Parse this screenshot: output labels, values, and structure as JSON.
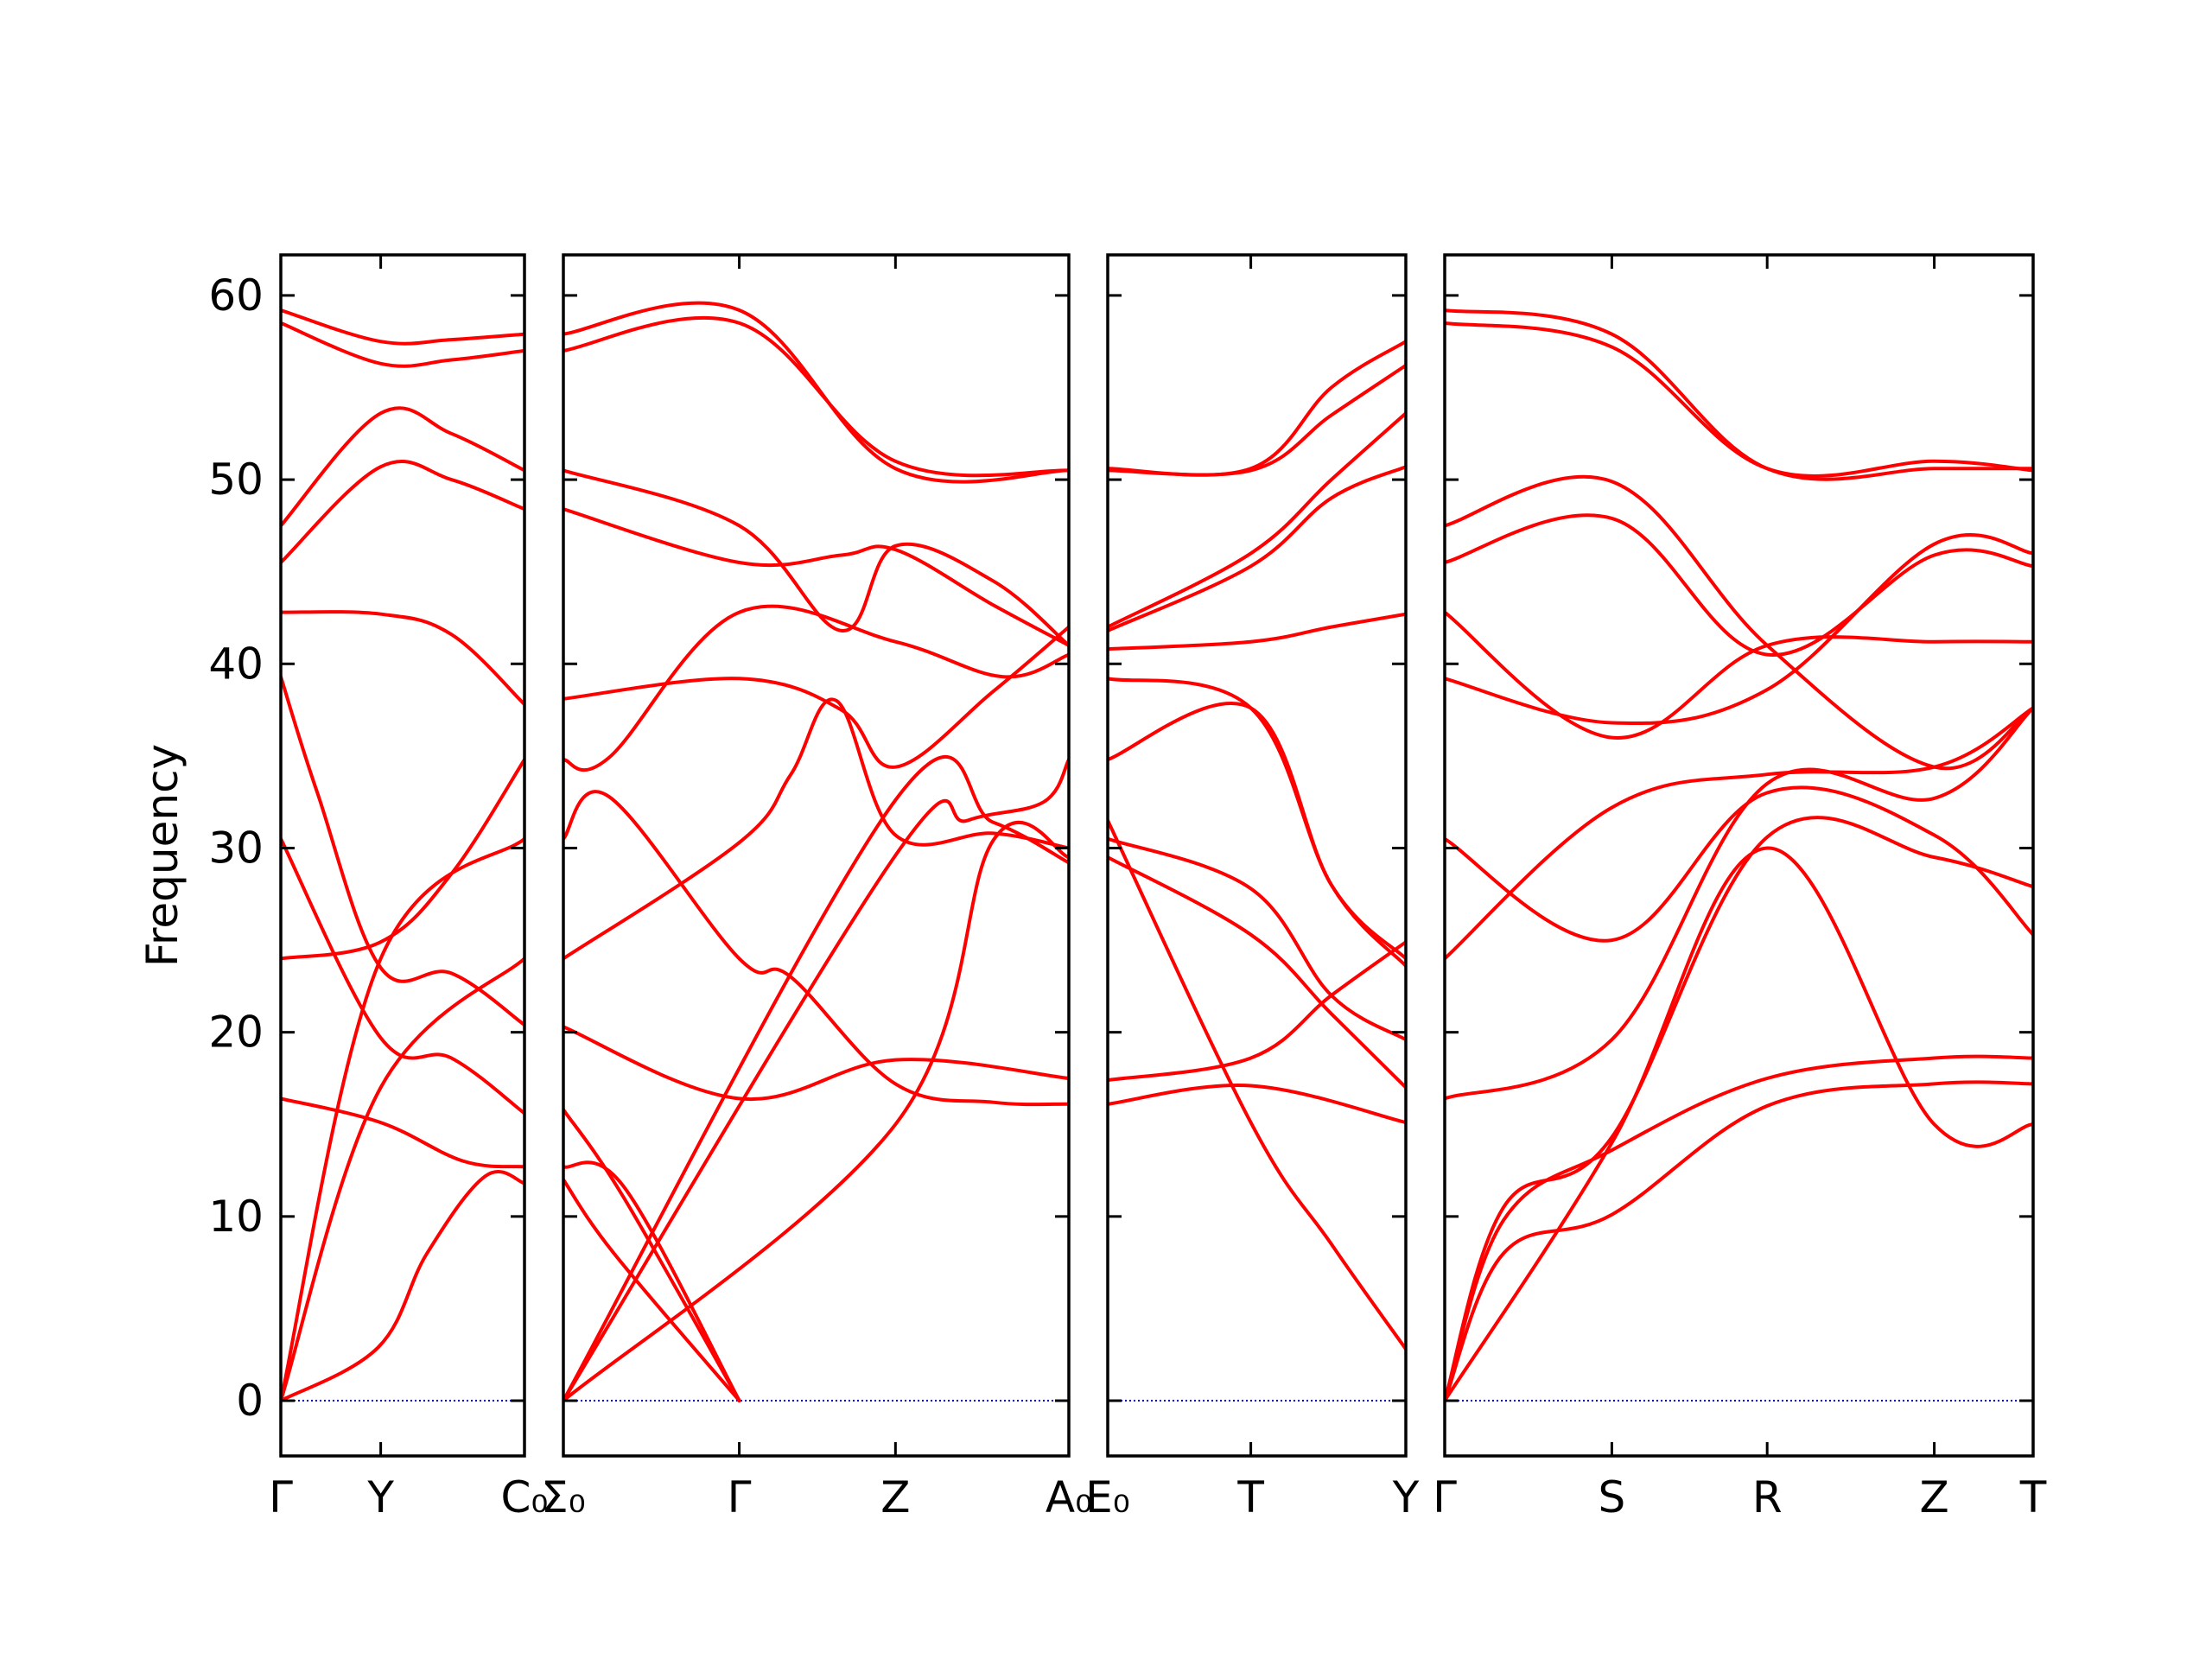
{
  "chart_data": {
    "type": "line",
    "ylabel": "Frequency",
    "ylim": [
      -3,
      62.2
    ],
    "yticks": [
      0,
      10,
      20,
      30,
      40,
      50,
      60
    ],
    "line_color": "#ff0000",
    "zero_line_color": "#0000cc",
    "panels": [
      {
        "id": "p1",
        "xlim": [
          0,
          1
        ],
        "ticks": [
          {
            "x": 0,
            "label": "Γ"
          },
          {
            "x": 0.41,
            "label": "Y"
          },
          {
            "x": 1,
            "label": "C₀"
          }
        ],
        "bands": [
          [
            [
              0,
              0
            ],
            [
              0.41,
              17
            ],
            [
              1,
              24
            ]
          ],
          [
            [
              0,
              0
            ],
            [
              0.41,
              24
            ],
            [
              1,
              30.5
            ]
          ],
          [
            [
              0,
              0
            ],
            [
              0.4,
              2.9
            ],
            [
              0.6,
              8
            ],
            [
              0.84,
              12.2
            ],
            [
              1,
              11.8
            ]
          ],
          [
            [
              0,
              16.4
            ],
            [
              0.41,
              15.1
            ],
            [
              0.75,
              13
            ],
            [
              1,
              12.7
            ]
          ],
          [
            [
              0,
              24
            ],
            [
              0.41,
              24.9
            ],
            [
              0.7,
              28.6
            ],
            [
              1,
              34.8
            ]
          ],
          [
            [
              0,
              30.5
            ],
            [
              0.41,
              19.7
            ],
            [
              0.7,
              18.6
            ],
            [
              1,
              15.6
            ]
          ],
          [
            [
              0,
              39.3
            ],
            [
              0.15,
              33
            ],
            [
              0.41,
              23.5
            ],
            [
              0.7,
              23.2
            ],
            [
              1,
              20.4
            ]
          ],
          [
            [
              0,
              42.8
            ],
            [
              0.41,
              42.7
            ],
            [
              0.7,
              41.6
            ],
            [
              1,
              37.8
            ]
          ],
          [
            [
              0,
              45.5
            ],
            [
              0.41,
              50.7
            ],
            [
              0.7,
              50
            ],
            [
              1,
              48.4
            ]
          ],
          [
            [
              0,
              47.5
            ],
            [
              0.41,
              53.6
            ],
            [
              0.7,
              52.5
            ],
            [
              1,
              50.5
            ]
          ],
          [
            [
              0,
              58.5
            ],
            [
              0.41,
              56.3
            ],
            [
              0.7,
              56.5
            ],
            [
              1,
              57
            ]
          ],
          [
            [
              0,
              59.2
            ],
            [
              0.41,
              57.5
            ],
            [
              0.7,
              57.6
            ],
            [
              1,
              57.9
            ]
          ]
        ]
      },
      {
        "id": "p2",
        "xlim": [
          0,
          1
        ],
        "ticks": [
          {
            "x": 0,
            "label": "Σ₀"
          },
          {
            "x": 0.348,
            "label": "Γ"
          },
          {
            "x": 0.657,
            "label": "Z"
          },
          {
            "x": 1,
            "label": "A₀"
          }
        ],
        "bands": [
          [
            [
              0,
              12
            ],
            [
              0.1,
              8
            ],
            [
              0.348,
              0
            ]
          ],
          [
            [
              0,
              12.7
            ],
            [
              0.12,
              11.6
            ],
            [
              0.348,
              0
            ]
          ],
          [
            [
              0,
              15.8
            ],
            [
              0.12,
              11
            ],
            [
              0.348,
              0
            ]
          ],
          [
            [
              0,
              20.3
            ],
            [
              0.348,
              16.4
            ],
            [
              0.657,
              18.5
            ],
            [
              1,
              17.5
            ]
          ],
          [
            [
              0,
              24
            ],
            [
              0.348,
              30.3
            ],
            [
              0.45,
              34
            ],
            [
              0.54,
              38
            ],
            [
              0.657,
              30.7
            ],
            [
              0.85,
              30.8
            ],
            [
              1,
              30
            ]
          ],
          [
            [
              0,
              30.5
            ],
            [
              0.09,
              32.8
            ],
            [
              0.348,
              24
            ],
            [
              0.45,
              23
            ],
            [
              0.657,
              17.2
            ],
            [
              0.85,
              16.2
            ],
            [
              1,
              16.1
            ]
          ],
          [
            [
              0,
              34.8
            ],
            [
              0.09,
              34.9
            ],
            [
              0.348,
              42.8
            ],
            [
              0.657,
              41.2
            ],
            [
              0.87,
              39.3
            ],
            [
              1,
              40.5
            ]
          ],
          [
            [
              0,
              38.1
            ],
            [
              0.348,
              39.2
            ],
            [
              0.55,
              37.5
            ],
            [
              0.657,
              34.4
            ],
            [
              0.85,
              38.5
            ],
            [
              1,
              42
            ]
          ],
          [
            [
              0,
              48.4
            ],
            [
              0.348,
              45.5
            ],
            [
              0.55,
              45.9
            ],
            [
              0.657,
              46.2
            ],
            [
              0.85,
              43.2
            ],
            [
              1,
              41
            ]
          ],
          [
            [
              0,
              50.5
            ],
            [
              0.348,
              47.5
            ],
            [
              0.55,
              41.8
            ],
            [
              0.657,
              46.4
            ],
            [
              0.85,
              44.5
            ],
            [
              1,
              41
            ]
          ],
          [
            [
              0,
              57
            ],
            [
              0.348,
              58.5
            ],
            [
              0.657,
              51.0
            ],
            [
              1,
              50.5
            ]
          ],
          [
            [
              0,
              57.9
            ],
            [
              0.348,
              59.2
            ],
            [
              0.657,
              50.6
            ],
            [
              1,
              50.5
            ]
          ],
          [
            [
              0,
              0
            ],
            [
              0.657,
              29.6
            ],
            [
              0.8,
              31.5
            ],
            [
              0.95,
              32.5
            ],
            [
              1,
              34.8
            ]
          ],
          [
            [
              0,
              0
            ],
            [
              0.657,
              32.6
            ],
            [
              0.85,
              31.4
            ],
            [
              1,
              29.2
            ]
          ],
          [
            [
              0,
              0
            ],
            [
              0.657,
              15.0
            ],
            [
              0.85,
              30.4
            ],
            [
              1,
              29.5
            ]
          ]
        ]
      },
      {
        "id": "p3",
        "xlim": [
          0,
          1
        ],
        "ticks": [
          {
            "x": 0,
            "label": "E₀"
          },
          {
            "x": 0.48,
            "label": "T"
          },
          {
            "x": 1,
            "label": "Y"
          }
        ],
        "bands": [
          [
            [
              0,
              16.1
            ],
            [
              0.48,
              17.1
            ],
            [
              1,
              15.1
            ]
          ],
          [
            [
              0,
              17.4
            ],
            [
              0.48,
              18.6
            ],
            [
              0.75,
              22
            ],
            [
              1,
              24.9
            ]
          ],
          [
            [
              0,
              29.5
            ],
            [
              0.48,
              25.3
            ],
            [
              0.75,
              21
            ],
            [
              1,
              17
            ]
          ],
          [
            [
              0,
              30.5
            ],
            [
              0.48,
              27.8
            ],
            [
              0.75,
              22
            ],
            [
              1,
              19.6
            ]
          ],
          [
            [
              0,
              31.5
            ],
            [
              0.48,
              15.1
            ],
            [
              0.75,
              8.5
            ],
            [
              1,
              2.8
            ]
          ],
          [
            [
              0,
              34.8
            ],
            [
              0.48,
              37.6
            ],
            [
              0.75,
              28
            ],
            [
              1,
              24
            ]
          ],
          [
            [
              0,
              39.2
            ],
            [
              0.48,
              37.6
            ],
            [
              0.75,
              28
            ],
            [
              1,
              23.6
            ]
          ],
          [
            [
              0,
              40.8
            ],
            [
              0.48,
              41.2
            ],
            [
              0.75,
              42
            ],
            [
              1,
              42.7
            ]
          ],
          [
            [
              0,
              41.8
            ],
            [
              0.48,
              45.3
            ],
            [
              0.75,
              49
            ],
            [
              1,
              50.7
            ]
          ],
          [
            [
              0,
              42
            ],
            [
              0.48,
              46.0
            ],
            [
              0.75,
              50
            ],
            [
              1,
              53.6
            ]
          ],
          [
            [
              0,
              50.5
            ],
            [
              0.48,
              50.5
            ],
            [
              0.75,
              53.5
            ],
            [
              1,
              56.2
            ]
          ],
          [
            [
              0,
              50.6
            ],
            [
              0.48,
              50.6
            ],
            [
              0.75,
              55
            ],
            [
              1,
              57.5
            ]
          ]
        ]
      },
      {
        "id": "p4",
        "xlim": [
          0,
          1
        ],
        "ticks": [
          {
            "x": 0,
            "label": "Γ"
          },
          {
            "x": 0.284,
            "label": "S"
          },
          {
            "x": 0.548,
            "label": "R"
          },
          {
            "x": 0.832,
            "label": "Z"
          },
          {
            "x": 1,
            "label": "T"
          }
        ],
        "bands": [
          [
            [
              0,
              0
            ],
            [
              0.1,
              8
            ],
            [
              0.284,
              10.1
            ],
            [
              0.548,
              16
            ],
            [
              0.832,
              17.2
            ],
            [
              1,
              17.2
            ]
          ],
          [
            [
              0,
              0
            ],
            [
              0.1,
              9.8
            ],
            [
              0.284,
              13.6
            ],
            [
              0.548,
              17.5
            ],
            [
              0.832,
              18.6
            ],
            [
              1,
              18.6
            ]
          ],
          [
            [
              0,
              0
            ],
            [
              0.1,
              10.5
            ],
            [
              0.284,
              14.3
            ],
            [
              0.548,
              30.6
            ],
            [
              0.832,
              29.5
            ],
            [
              1,
              27.9
            ]
          ],
          [
            [
              0,
              16.4
            ],
            [
              0.284,
              19.6
            ],
            [
              0.548,
              33.5
            ],
            [
              0.832,
              32.7
            ],
            [
              1,
              37.6
            ]
          ],
          [
            [
              0,
              24
            ],
            [
              0.284,
              32.2
            ],
            [
              0.548,
              34
            ],
            [
              0.832,
              34.4
            ],
            [
              1,
              37.6
            ]
          ],
          [
            [
              0,
              30.5
            ],
            [
              0.284,
              25
            ],
            [
              0.548,
              33
            ],
            [
              0.832,
              30.7
            ],
            [
              1,
              25.3
            ]
          ],
          [
            [
              0,
              39.2
            ],
            [
              0.284,
              36.8
            ],
            [
              0.548,
              38.6
            ],
            [
              0.832,
              46.5
            ],
            [
              1,
              46
            ]
          ],
          [
            [
              0,
              42.8
            ],
            [
              0.284,
              36.0
            ],
            [
              0.548,
              41
            ],
            [
              0.832,
              41.2
            ],
            [
              1,
              41.2
            ]
          ],
          [
            [
              0,
              45.5
            ],
            [
              0.284,
              47.9
            ],
            [
              0.548,
              40.5
            ],
            [
              0.832,
              45.9
            ],
            [
              1,
              45.3
            ]
          ],
          [
            [
              0,
              47.5
            ],
            [
              0.284,
              49.9
            ],
            [
              0.548,
              41
            ],
            [
              0.832,
              34.4
            ],
            [
              1,
              37.6
            ]
          ],
          [
            [
              0,
              58.5
            ],
            [
              0.284,
              57.2
            ],
            [
              0.548,
              50.6
            ],
            [
              0.832,
              51
            ],
            [
              1,
              50.5
            ]
          ],
          [
            [
              0,
              59.2
            ],
            [
              0.284,
              57.9
            ],
            [
              0.548,
              50.6
            ],
            [
              0.832,
              50.6
            ],
            [
              1,
              50.6
            ]
          ],
          [
            [
              0,
              0
            ],
            [
              0.284,
              14
            ],
            [
              0.548,
              30
            ],
            [
              0.832,
              15
            ],
            [
              1,
              15
            ]
          ]
        ]
      }
    ]
  }
}
